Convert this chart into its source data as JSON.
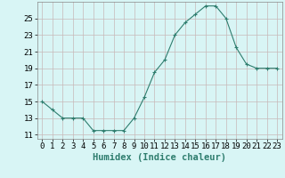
{
  "x": [
    0,
    1,
    2,
    3,
    4,
    5,
    6,
    7,
    8,
    9,
    10,
    11,
    12,
    13,
    14,
    15,
    16,
    17,
    18,
    19,
    20,
    21,
    22,
    23
  ],
  "y": [
    15,
    14,
    13,
    13,
    13,
    11.5,
    11.5,
    11.5,
    11.5,
    13,
    15.5,
    18.5,
    20,
    23,
    24.5,
    25.5,
    26.5,
    26.5,
    25,
    21.5,
    19.5,
    19,
    19,
    19
  ],
  "line_color": "#2e7d6e",
  "marker": "+",
  "marker_color": "#2e7d6e",
  "bg_color": "#d8f5f5",
  "grid_color": "#c8b8b8",
  "xlabel": "Humidex (Indice chaleur)",
  "ylabel_ticks": [
    11,
    13,
    15,
    17,
    19,
    21,
    23,
    25
  ],
  "xlim": [
    -0.5,
    23.5
  ],
  "ylim": [
    10.5,
    27
  ],
  "xticks": [
    0,
    1,
    2,
    3,
    4,
    5,
    6,
    7,
    8,
    9,
    10,
    11,
    12,
    13,
    14,
    15,
    16,
    17,
    18,
    19,
    20,
    21,
    22,
    23
  ],
  "axis_fontsize": 6.5,
  "label_fontsize": 7.5
}
